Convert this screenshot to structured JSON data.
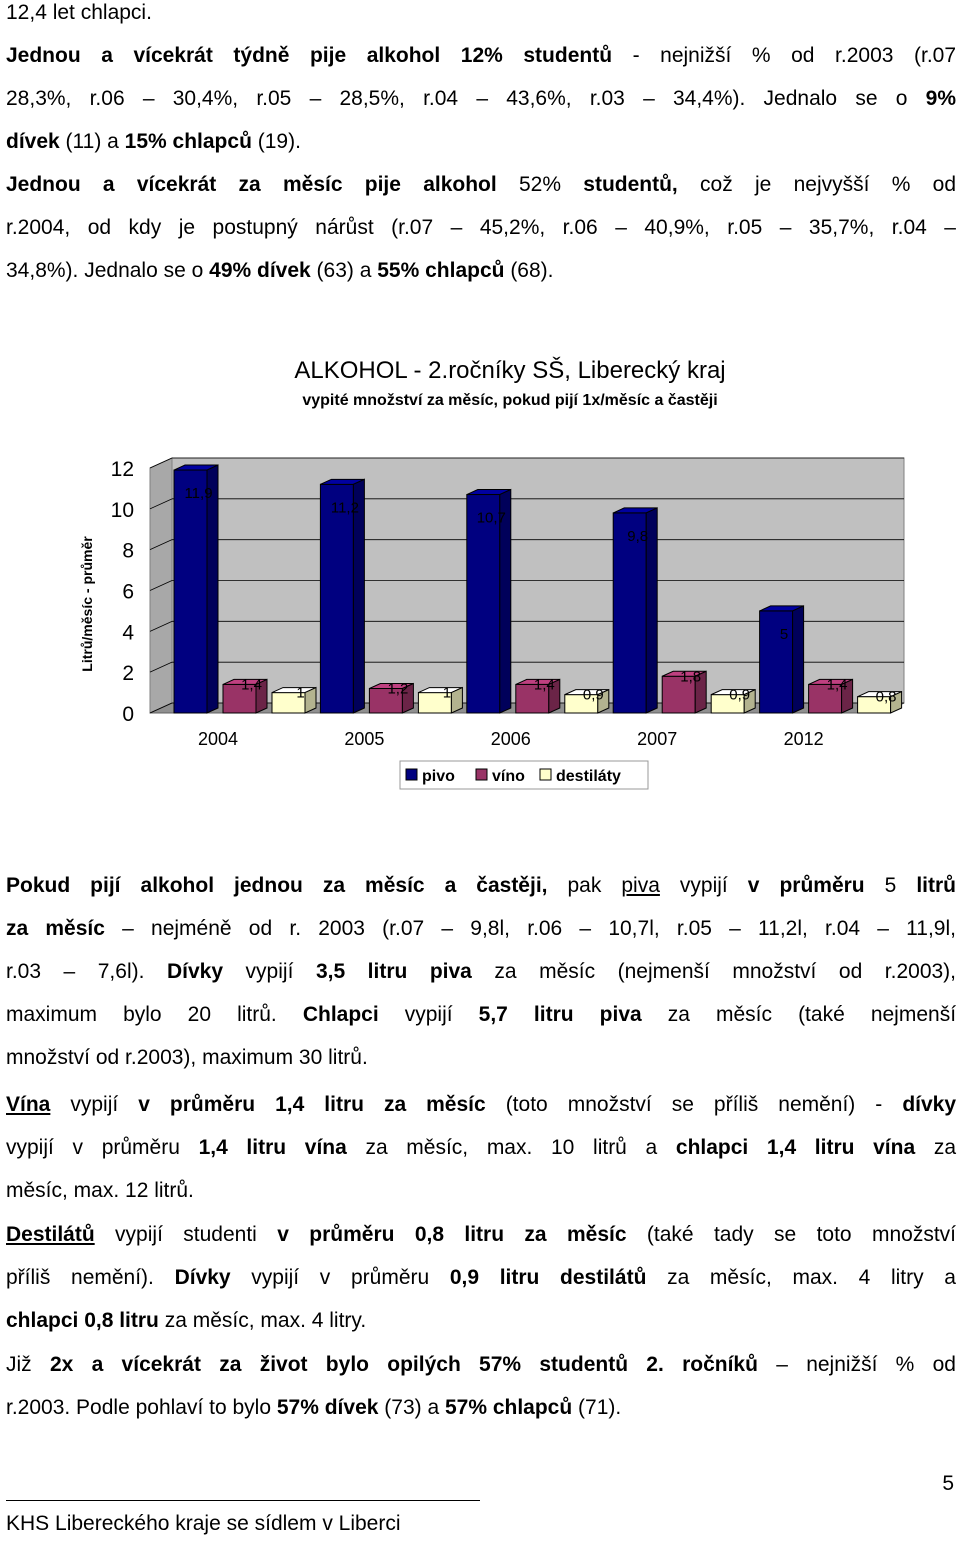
{
  "text": {
    "p1": {
      "l1": "12,4 let chlapci.",
      "l2a": "Jednou a vícekrát týdně pije alkohol 12% studentů",
      "l2b": " - nejnižší % od r.2003 (r.07",
      "l3a": "28,3%, r.06 – 30,4%, r.05 – 28,5%, r.04 – 43,6%, r.03 – 34,4%).  Jednalo se o ",
      "l3b": "9%",
      "l4a": "dívek",
      "l4b": " (11) a ",
      "l4c": "15% chlapců",
      "l4d": " (19)."
    },
    "p2": {
      "l1a": "Jednou a vícekrát za měsíc pije alkohol",
      "l1b": " 52% ",
      "l1c": "studentů,",
      "l1d": " což je nejvyšší % od",
      "l2": "r.2004, od kdy je postupný nárůst (r.07 – 45,2%, r.06 – 40,9%, r.05 – 35,7%, r.04 –",
      "l3a": "34,8%). Jednalo se o ",
      "l3b": "49% dívek",
      "l3c": " (63) a ",
      "l3d": "55% chlapců",
      "l3e": " (68)."
    },
    "p3": {
      "l1a": "Pokud",
      "l1b": " pijí alkohol jednou za měsíc a častěji,",
      "l1c": " pak ",
      "l1d": "piva",
      "l1e": " vypijí ",
      "l1f": "v průměru",
      "l1g": " 5 ",
      "l1h": "litrů",
      "l2a": "za měsíc",
      "l2b": " – nejméně od r. 2003 (r.07 – 9,8l, r.06 – 10,7l, r.05 – 11,2l, r.04 – 11,9l,",
      "l3a": "r.03 – 7,6l). ",
      "l3b": "Dívky",
      "l3c": " vypijí ",
      "l3d": "3,5 litru piva",
      "l3e": " za měsíc (nejmenší množství od r.2003),",
      "l4a": "maximum bylo 20 litrů. ",
      "l4b": "Chlapci",
      "l4c": " vypijí ",
      "l4d": "5,7 litru piva",
      "l4e": " za měsíc (také nejmenší",
      "l5": "množství od r.2003), maximum 30 litrů."
    },
    "p4": {
      "l1a": "Vína",
      "l1b": " vypijí ",
      "l1c": "v průměru 1,4 litru za měsíc",
      "l1d": " (toto množství se příliš nemění) - ",
      "l1e": "dívky",
      "l2a": "vypijí v průměru ",
      "l2b": "1,4 litru vína",
      "l2c": " za měsíc, max. 10 litrů a ",
      "l2d": "chlapci 1,4 litru vína",
      "l2e": " za",
      "l3": "měsíc, max. 12 litrů."
    },
    "p5": {
      "l1a": "Destilátů",
      "l1b": " vypijí studenti ",
      "l1c": "v průměru 0,8 litru za měsíc",
      "l1d": " (také tady se toto množství",
      "l2a": "příliš nemění). ",
      "l2b": "Dívky",
      "l2c": " vypijí v průměru ",
      "l2d": "0,9 litru destilátů",
      "l2e": " za měsíc, max. 4 litry a",
      "l3a": "chlapci 0,8 litru",
      "l3b": " za měsíc, max. 4 litry."
    },
    "p6": {
      "l1a": "Již ",
      "l1b": "2x a vícekrát za život bylo opilých 57% studentů 2. ročníků",
      "l1c": " – nejnižší % od",
      "l2a": "r.2003. Podle pohlaví to bylo ",
      "l2b": "57% dívek",
      "l2c": " (73) a ",
      "l2d": "57% chlapců",
      "l2e": " (71)."
    }
  },
  "footer": {
    "text": "KHS Libereckého kraje se sídlem v Liberci",
    "page": "5"
  },
  "chart_data": {
    "type": "bar",
    "title": "ALKOHOL - 2.ročníky SŠ, Liberecký kraj",
    "subtitle": "vypité množství za měsíc, pokud pijí 1x/měsíc a častěji",
    "ylabel": "Litrů/měsíc - průměr",
    "xlabel": "",
    "categories": [
      "2004",
      "2005",
      "2006",
      "2007",
      "2012"
    ],
    "series": [
      {
        "name": "pivo",
        "values": [
          11.9,
          11.2,
          10.7,
          9.8,
          5
        ],
        "labels": [
          "11,9",
          "11,2",
          "10,7",
          "9,8",
          "5"
        ],
        "color": "#000080"
      },
      {
        "name": "víno",
        "values": [
          1.4,
          1.2,
          1.4,
          1.8,
          1.4
        ],
        "labels": [
          "1,4",
          "1,2",
          "1,4",
          "1,8",
          "1,4"
        ],
        "color": "#993366"
      },
      {
        "name": "destiláty",
        "values": [
          1,
          1,
          0.9,
          0.9,
          0.8
        ],
        "labels": [
          "1",
          "1",
          "0,9",
          "0,9",
          "0,8"
        ],
        "color": "#FFFFCC"
      }
    ],
    "ylim": [
      0,
      12
    ],
    "yticks": [
      "0",
      "2",
      "4",
      "6",
      "8",
      "10",
      "12"
    ],
    "grid": true,
    "legend": "bottom"
  }
}
